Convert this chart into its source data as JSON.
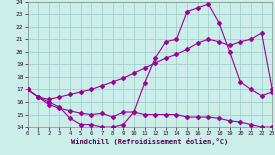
{
  "xlabel": "Windchill (Refroidissement éolien,°C)",
  "background_color": "#cceee8",
  "grid_color": "#99cccc",
  "line_color": "#990099",
  "xlim": [
    0,
    23
  ],
  "ylim": [
    14,
    24
  ],
  "xticks": [
    0,
    1,
    2,
    3,
    4,
    5,
    6,
    7,
    8,
    9,
    10,
    11,
    12,
    13,
    14,
    15,
    16,
    17,
    18,
    19,
    20,
    21,
    22,
    23
  ],
  "yticks": [
    14,
    15,
    16,
    17,
    18,
    19,
    20,
    21,
    22,
    23,
    24
  ],
  "line1_x": [
    0,
    1,
    2,
    3,
    4,
    5,
    6,
    7,
    8,
    9,
    10,
    11,
    12,
    13,
    14,
    15,
    16,
    17,
    18,
    19,
    20,
    21,
    22,
    23
  ],
  "line1_y": [
    17.0,
    16.4,
    15.8,
    15.5,
    15.3,
    15.1,
    15.0,
    15.1,
    14.8,
    15.2,
    15.2,
    15.0,
    15.0,
    15.0,
    15.0,
    14.8,
    14.8,
    14.8,
    14.7,
    14.5,
    14.4,
    14.2,
    14.0,
    14.0
  ],
  "line2_x": [
    0,
    1,
    2,
    3,
    4,
    5,
    6,
    7,
    8,
    9,
    10,
    11,
    12,
    13,
    14,
    15,
    16,
    17,
    18,
    19,
    20,
    21,
    22,
    23
  ],
  "line2_y": [
    17.0,
    16.4,
    16.2,
    16.4,
    16.6,
    16.8,
    17.0,
    17.3,
    17.6,
    17.9,
    18.3,
    18.7,
    19.1,
    19.5,
    19.8,
    20.2,
    20.7,
    21.0,
    20.8,
    20.5,
    20.8,
    21.0,
    21.5,
    17.0
  ],
  "line3_x": [
    0,
    1,
    2,
    3,
    4,
    5,
    6,
    7,
    8,
    9,
    10,
    11,
    12,
    13,
    14,
    15,
    16,
    17,
    18,
    19,
    20,
    21,
    22,
    23
  ],
  "line3_y": [
    17.0,
    16.4,
    16.0,
    15.6,
    14.7,
    14.2,
    14.2,
    14.0,
    14.0,
    14.2,
    15.2,
    17.5,
    19.5,
    20.8,
    21.0,
    23.2,
    23.5,
    23.8,
    22.3,
    20.0,
    17.6,
    17.0,
    16.5,
    16.8
  ]
}
